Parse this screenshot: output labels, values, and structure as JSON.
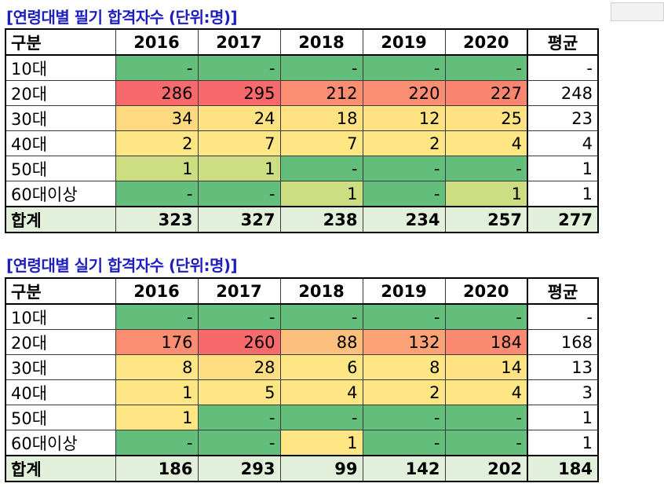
{
  "written": {
    "title": "[연령대별 필기 합격자수 (단위:명)]",
    "headers": [
      "구분",
      "2016",
      "2017",
      "2018",
      "2019",
      "2020",
      "평균"
    ],
    "rows": [
      {
        "label": "10대",
        "values": [
          "-",
          "-",
          "-",
          "-",
          "-"
        ],
        "colors": [
          "#63be7b",
          "#63be7b",
          "#63be7b",
          "#63be7b",
          "#63be7b"
        ],
        "avg": "-"
      },
      {
        "label": "20대",
        "values": [
          "286",
          "295",
          "212",
          "220",
          "227"
        ],
        "colors": [
          "#f8696b",
          "#f8696b",
          "#fa8d72",
          "#fa8d72",
          "#f98570"
        ],
        "avg": "248"
      },
      {
        "label": "30대",
        "values": [
          "34",
          "24",
          "18",
          "12",
          "25"
        ],
        "colors": [
          "#fed980",
          "#ffe383",
          "#ffe383",
          "#ffe383",
          "#ffe383"
        ],
        "avg": "23"
      },
      {
        "label": "40대",
        "values": [
          "2",
          "7",
          "7",
          "2",
          "4"
        ],
        "colors": [
          "#ffe684",
          "#ffe684",
          "#ffe684",
          "#ffe684",
          "#ffe684"
        ],
        "avg": "4"
      },
      {
        "label": "50대",
        "values": [
          "1",
          "1",
          "-",
          "-",
          "-"
        ],
        "colors": [
          "#cddd82",
          "#cddd82",
          "#63be7b",
          "#63be7b",
          "#63be7b"
        ],
        "avg": "1"
      },
      {
        "label": "60대이상",
        "values": [
          "-",
          "-",
          "1",
          "-",
          "1"
        ],
        "colors": [
          "#63be7b",
          "#63be7b",
          "#cddd82",
          "#63be7b",
          "#cddd82"
        ],
        "avg": "1"
      }
    ],
    "total": {
      "label": "합계",
      "values": [
        "323",
        "327",
        "238",
        "234",
        "257"
      ],
      "avg": "277"
    }
  },
  "practical": {
    "title": "[연령대별 실기 합격자수 (단위:명)]",
    "headers": [
      "구분",
      "2016",
      "2017",
      "2018",
      "2019",
      "2020",
      "평균"
    ],
    "rows": [
      {
        "label": "10대",
        "values": [
          "-",
          "-",
          "-",
          "-",
          "-"
        ],
        "colors": [
          "#63be7b",
          "#63be7b",
          "#63be7b",
          "#63be7b",
          "#63be7b"
        ],
        "avg": "-"
      },
      {
        "label": "20대",
        "values": [
          "176",
          "260",
          "88",
          "132",
          "184"
        ],
        "colors": [
          "#fa8d72",
          "#f8696b",
          "#fdc07c",
          "#fba276",
          "#fa8a72"
        ],
        "avg": "168"
      },
      {
        "label": "30대",
        "values": [
          "8",
          "28",
          "6",
          "8",
          "14"
        ],
        "colors": [
          "#ffe684",
          "#fede81",
          "#ffe684",
          "#ffe684",
          "#ffe383"
        ],
        "avg": "13"
      },
      {
        "label": "40대",
        "values": [
          "1",
          "5",
          "4",
          "2",
          "4"
        ],
        "colors": [
          "#ffe684",
          "#ffe684",
          "#ffe684",
          "#ffe684",
          "#ffe684"
        ],
        "avg": "3"
      },
      {
        "label": "50대",
        "values": [
          "1",
          "-",
          "-",
          "-",
          "-"
        ],
        "colors": [
          "#ffe684",
          "#63be7b",
          "#63be7b",
          "#63be7b",
          "#63be7b"
        ],
        "avg": "1"
      },
      {
        "label": "60대이상",
        "values": [
          "-",
          "-",
          "1",
          "-",
          "-"
        ],
        "colors": [
          "#63be7b",
          "#63be7b",
          "#ffe684",
          "#63be7b",
          "#63be7b"
        ],
        "avg": "1"
      }
    ],
    "total": {
      "label": "합계",
      "values": [
        "186",
        "293",
        "99",
        "142",
        "202"
      ],
      "avg": "184"
    }
  }
}
